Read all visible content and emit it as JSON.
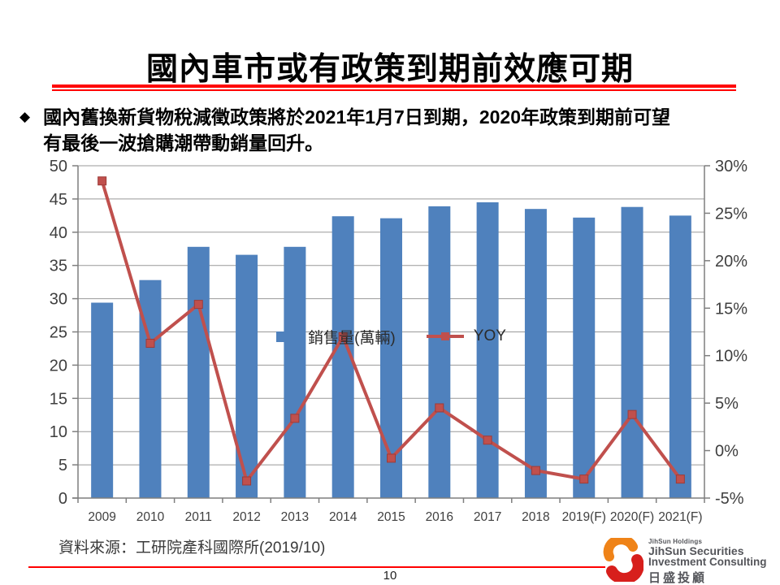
{
  "slide": {
    "title": "國內車市或有政策到期前效應可期",
    "bullet_full": "國內舊換新貨物稅減徵政策將於2021年1月7日到期，2020年政策到期前可望有最後一波搶購潮帶動銷量回升。",
    "bullet_line1": "國內舊換新貨物稅減徵政策將於2021年1月7日到期，2020年政策到期前可望",
    "bullet_line2": "有最後一波搶購潮帶動銷量回升。",
    "bullet_marker": "◆",
    "source": "資料來源：工研院產科國際所(2019/10)",
    "page_number": "10"
  },
  "colors": {
    "bar": "#4F81BD",
    "line": "#C0504D",
    "marker_edge": "#9E3B38",
    "grid": "#999999",
    "axis": "#7F7F7F",
    "axis_text": "#3F3F3F",
    "accent_red": "#FF0000",
    "logo_orange": "#EF8318",
    "logo_red": "#D71F1C",
    "logo_text": "#54555A"
  },
  "chart_data": {
    "type": "bar",
    "subtype": "bar+line combo, dual axis",
    "categories": [
      "2009",
      "2010",
      "2011",
      "2012",
      "2013",
      "2014",
      "2015",
      "2016",
      "2017",
      "2018",
      "2019(F)",
      "2020(F)",
      "2021(F)"
    ],
    "series": [
      {
        "name": "銷售量(萬輛)",
        "type": "bar",
        "axis": "left",
        "values": [
          29.4,
          32.8,
          37.8,
          36.6,
          37.8,
          42.4,
          42.1,
          43.9,
          44.5,
          43.5,
          42.2,
          43.8,
          42.5
        ]
      },
      {
        "name": "YOY",
        "type": "line",
        "axis": "right",
        "values": [
          28.4,
          11.3,
          15.4,
          -3.2,
          3.4,
          12.0,
          -0.8,
          4.5,
          1.1,
          -2.1,
          -3.0,
          3.8,
          -3.0
        ]
      }
    ],
    "title": "",
    "xlabel": "",
    "ylabel_left": "銷售量(萬輛)",
    "ylabel_right": "YOY(%)",
    "left_axis": {
      "min": 0,
      "max": 50,
      "step": 5,
      "ticks": [
        "0",
        "5",
        "10",
        "15",
        "20",
        "25",
        "30",
        "35",
        "40",
        "45",
        "50"
      ]
    },
    "right_axis": {
      "min": -5,
      "max": 30,
      "step": 5,
      "ticks": [
        "-5%",
        "0%",
        "5%",
        "10%",
        "15%",
        "20%",
        "25%",
        "30%"
      ]
    },
    "grid": "horizontal",
    "legend_position": "top-center"
  },
  "logo": {
    "holding": "JihSun Holdings",
    "line1": "JihSun Securities",
    "line2": "Investment Consulting",
    "chinese": "日盛投顧"
  }
}
